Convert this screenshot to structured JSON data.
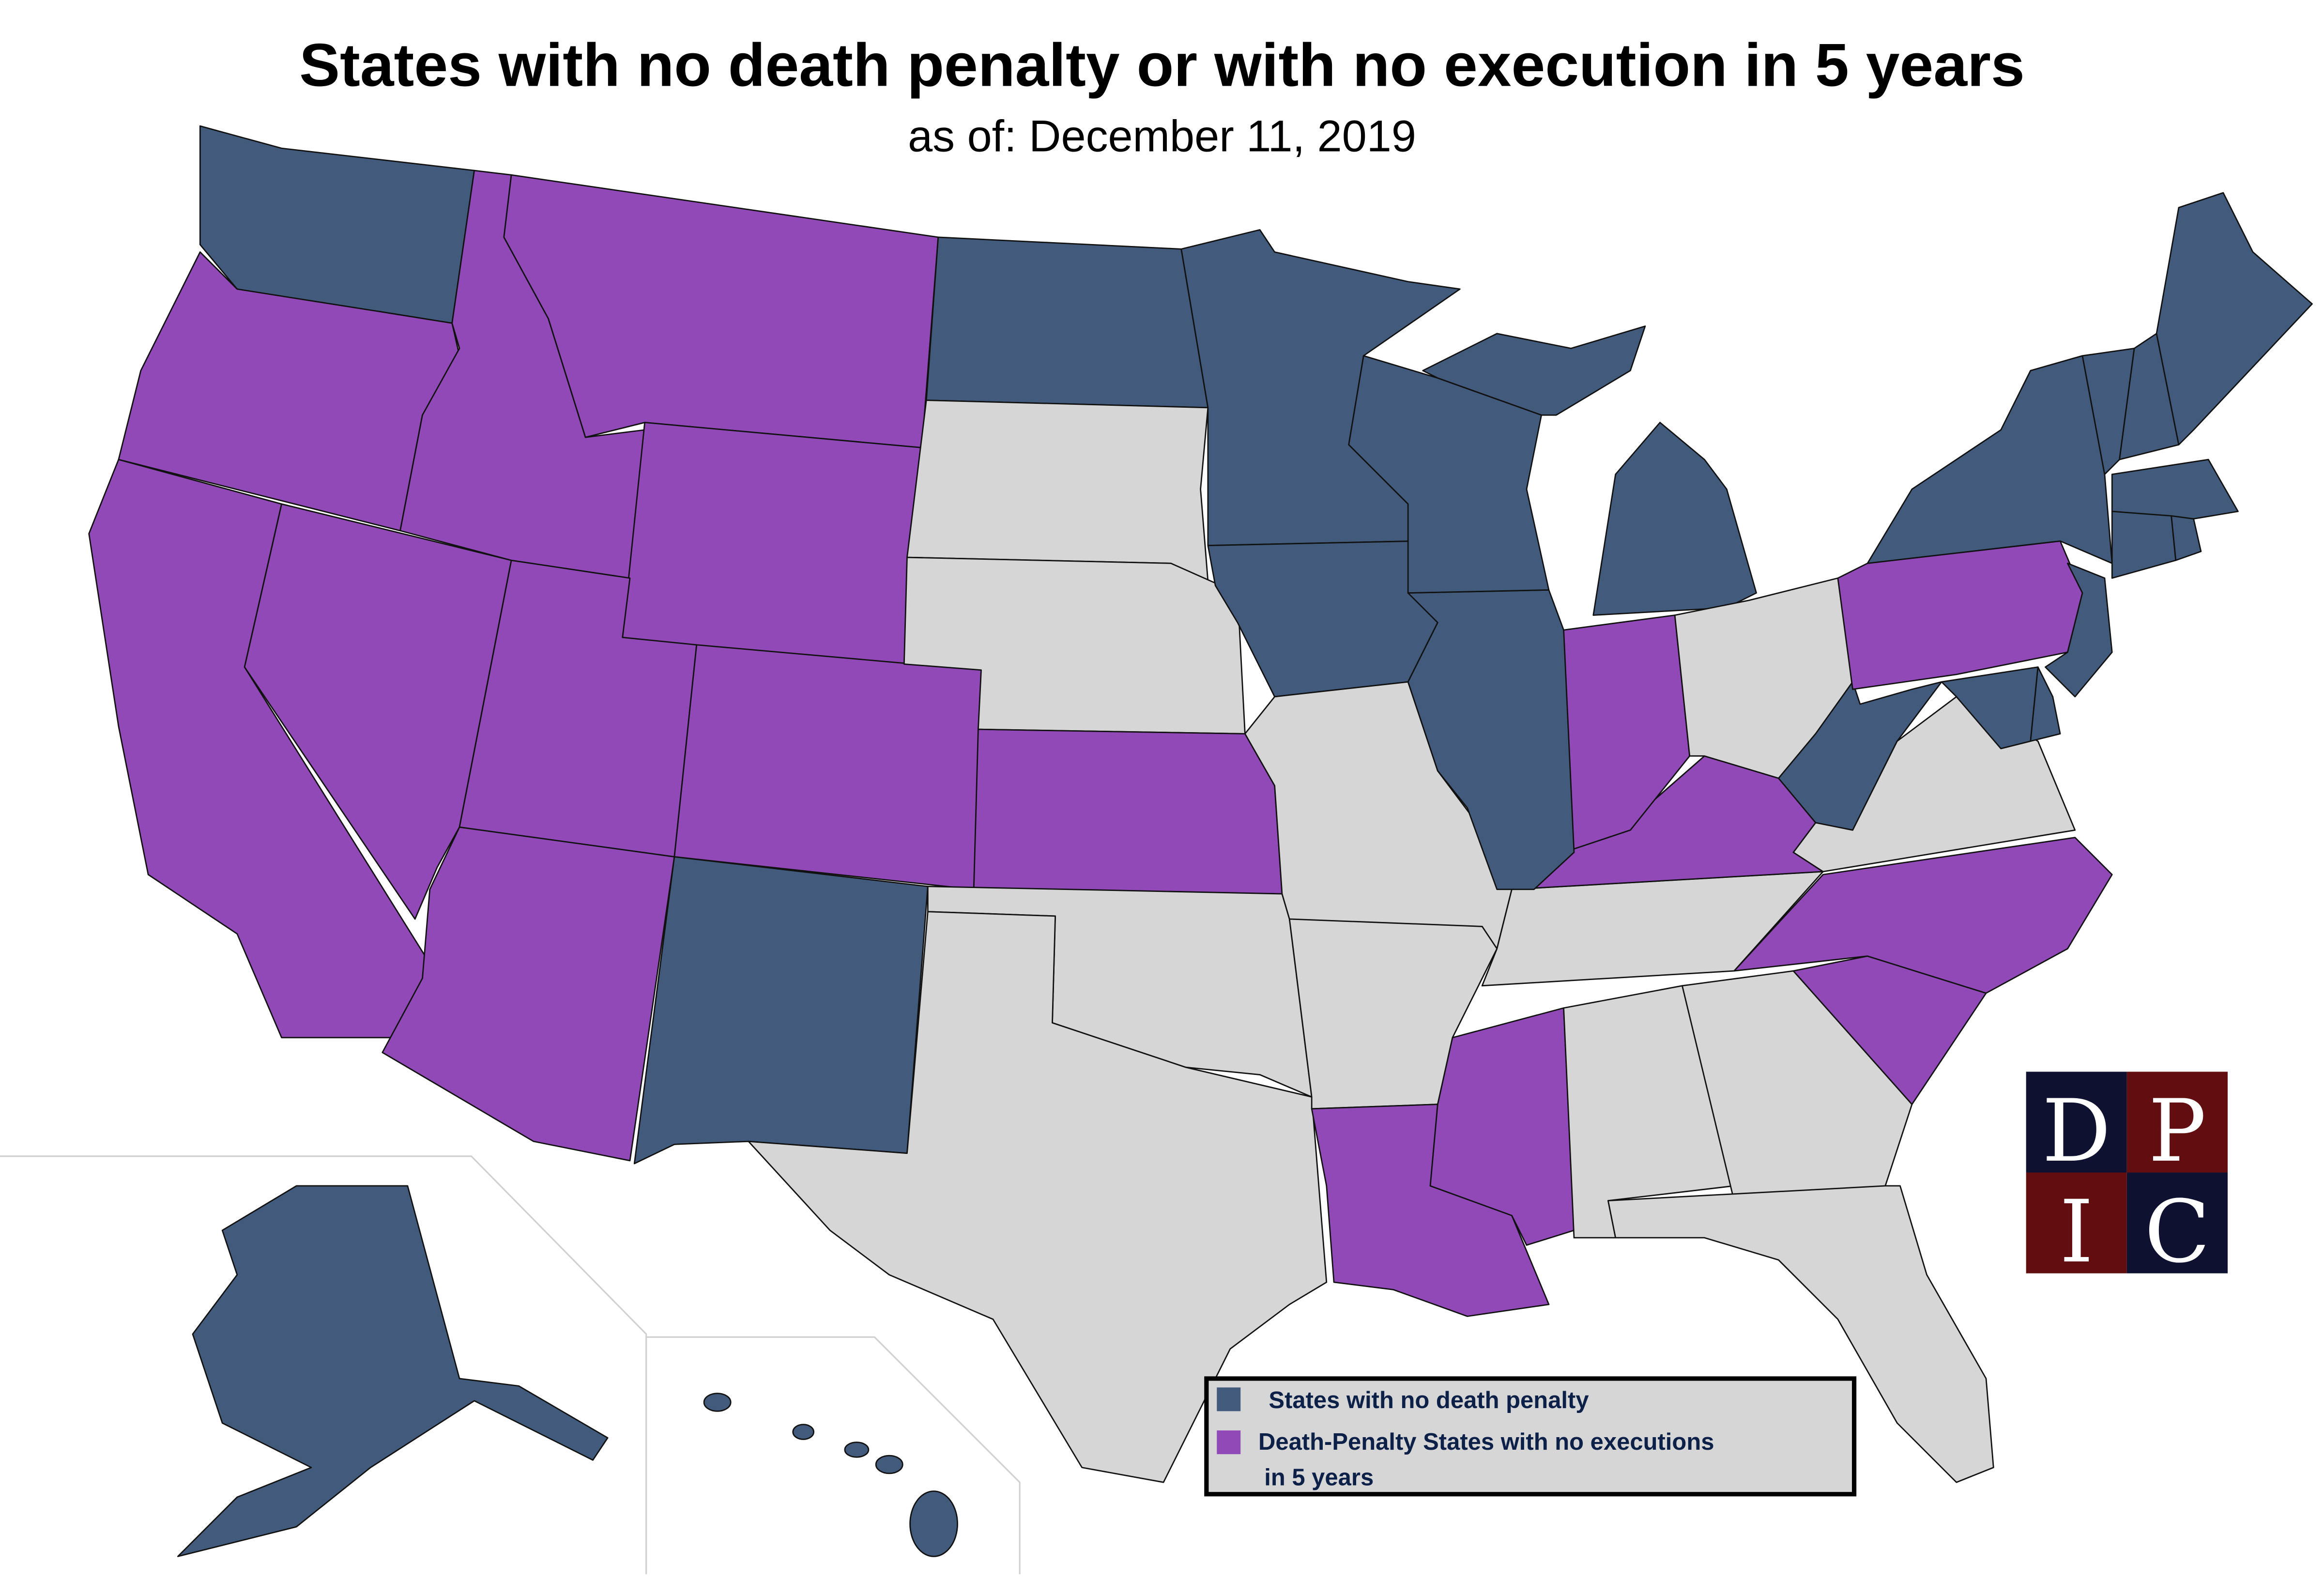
{
  "header": {
    "title": "States with no death penalty or with no execution in 5 years",
    "subtitle": "as of: December 11, 2019"
  },
  "colors": {
    "no_death_penalty": "#425b7d",
    "no_executions_5y": "#9049b7",
    "other": "#d6d6d6",
    "logo_navy": "#0e1130",
    "logo_red": "#620e10",
    "legend_text": "#0c2048"
  },
  "legend": {
    "items": [
      {
        "key": "no_death_penalty",
        "label": "States with no death penalty"
      },
      {
        "key": "no_executions_5y",
        "label_line1": "Death-Penalty States with no executions",
        "label_line2": "in 5 years"
      }
    ]
  },
  "logo": {
    "letters": [
      "D",
      "P",
      "I",
      "C"
    ]
  },
  "state_status": {
    "WA": "no_death_penalty",
    "OR": "no_executions_5y",
    "CA": "no_executions_5y",
    "NV": "no_executions_5y",
    "ID": "no_executions_5y",
    "MT": "no_executions_5y",
    "WY": "no_executions_5y",
    "UT": "no_executions_5y",
    "AZ": "no_executions_5y",
    "CO": "no_executions_5y",
    "NM": "no_death_penalty",
    "ND": "no_death_penalty",
    "SD": "other",
    "NE": "other",
    "KS": "no_executions_5y",
    "OK": "other",
    "TX": "other",
    "MN": "no_death_penalty",
    "IA": "no_death_penalty",
    "MO": "other",
    "AR": "other",
    "LA": "no_executions_5y",
    "MS": "no_executions_5y",
    "AL": "other",
    "GA": "other",
    "FL": "other",
    "SC": "no_executions_5y",
    "NC": "no_executions_5y",
    "TN": "other",
    "KY": "no_executions_5y",
    "IN": "no_executions_5y",
    "IL": "no_death_penalty",
    "WI": "no_death_penalty",
    "MI": "no_death_penalty",
    "OH": "other",
    "WV": "no_death_penalty",
    "VA": "other",
    "PA": "no_executions_5y",
    "NY": "no_death_penalty",
    "NJ": "no_death_penalty",
    "MD": "no_death_penalty",
    "DE": "no_death_penalty",
    "VT": "no_death_penalty",
    "NH": "no_death_penalty",
    "ME": "no_death_penalty",
    "MA": "no_death_penalty",
    "CT": "no_death_penalty",
    "RI": "no_death_penalty",
    "AK": "no_death_penalty",
    "HI": "no_death_penalty"
  }
}
